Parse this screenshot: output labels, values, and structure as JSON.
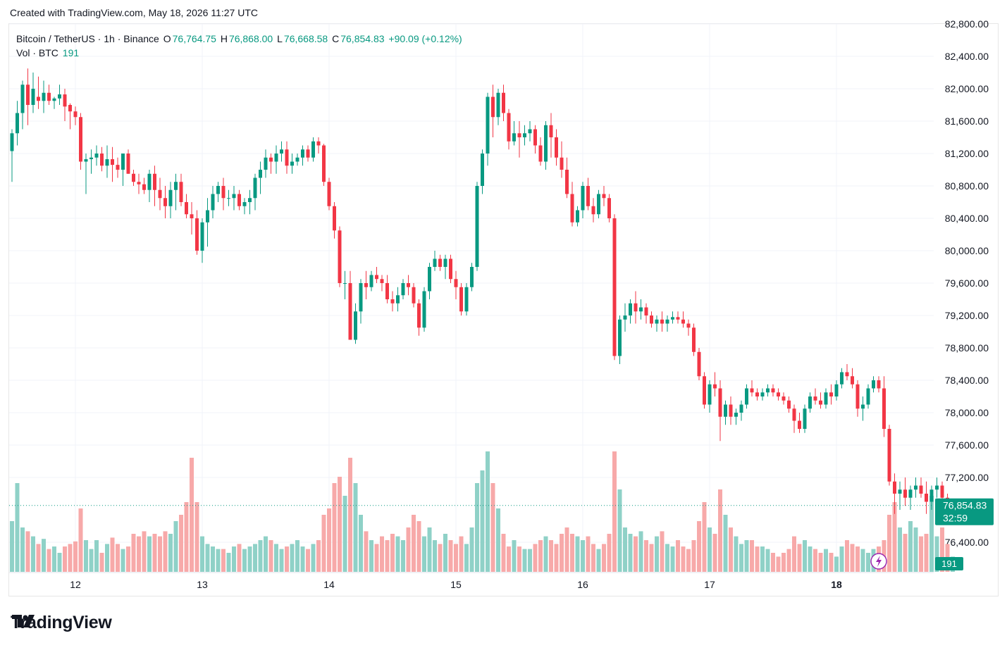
{
  "header": {
    "created_text": "Created with TradingView.com, May 18, 2026 11:27 UTC"
  },
  "legend": {
    "symbol": "Bitcoin / TetherUS · 1h · Binance",
    "open_label": "O",
    "open": "76,764.75",
    "high_label": "H",
    "high": "76,868.00",
    "low_label": "L",
    "low": "76,668.58",
    "close_label": "C",
    "close": "76,854.83",
    "change": "+90.09 (+0.12%)",
    "volume_label": "Vol · BTC",
    "volume": "191"
  },
  "price_tag": {
    "price": "76,854.83",
    "countdown": "32:59"
  },
  "volume_tag": "191",
  "brand": {
    "name": "TradingView"
  },
  "colors": {
    "up": "#089981",
    "down": "#f23645",
    "up_volume": "#8fd1c7",
    "down_volume": "#f7a9a9",
    "price_tag": "#089981",
    "grid": "#f0f3fa",
    "axis_text": "#131722"
  },
  "chart_data": {
    "type": "candlestick",
    "title": "Bitcoin / TetherUS · 1h · Binance",
    "ylim": [
      76100,
      82900
    ],
    "y_ticks": [
      "82,800.00",
      "82,400.00",
      "82,000.00",
      "81,600.00",
      "81,200.00",
      "80,800.00",
      "80,400.00",
      "80,000.00",
      "79,600.00",
      "79,200.00",
      "78,800.00",
      "78,400.00",
      "78,000.00",
      "77,600.00",
      "77,200.00",
      "76,400.00"
    ],
    "y_tick_values": [
      82800,
      82400,
      82000,
      81600,
      81200,
      80800,
      80400,
      80000,
      79600,
      79200,
      78800,
      78400,
      78000,
      77600,
      77200,
      76400
    ],
    "x_labels": [
      "12",
      "13",
      "14",
      "15",
      "16",
      "17",
      "18"
    ],
    "x_label_hours": [
      12,
      36,
      60,
      84,
      108,
      132,
      156
    ],
    "last_price": 76854.83,
    "grid": true,
    "candles": [
      [
        0,
        81230,
        81500,
        80850,
        81450,
        40
      ],
      [
        1,
        81450,
        81850,
        81300,
        81700,
        70
      ],
      [
        2,
        81700,
        82100,
        81500,
        82050,
        35
      ],
      [
        3,
        82050,
        82250,
        81550,
        81800,
        32
      ],
      [
        4,
        81800,
        82200,
        81700,
        82000,
        28
      ],
      [
        5,
        81900,
        82150,
        81750,
        81850,
        22
      ],
      [
        6,
        81850,
        82100,
        81700,
        81950,
        26
      ],
      [
        7,
        81950,
        82050,
        81800,
        81850,
        18
      ],
      [
        8,
        81850,
        81900,
        81750,
        81880,
        20
      ],
      [
        9,
        81880,
        82050,
        81800,
        81930,
        15
      ],
      [
        10,
        81930,
        82000,
        81600,
        81780,
        20
      ],
      [
        11,
        81800,
        81820,
        81500,
        81720,
        22
      ],
      [
        12,
        81720,
        81780,
        81550,
        81650,
        24
      ],
      [
        13,
        81650,
        81700,
        81000,
        81100,
        50
      ],
      [
        14,
        81100,
        81200,
        80700,
        81130,
        25
      ],
      [
        15,
        81130,
        81250,
        80950,
        81150,
        18
      ],
      [
        16,
        81150,
        81300,
        81050,
        81200,
        25
      ],
      [
        17,
        81200,
        81280,
        80980,
        81050,
        15
      ],
      [
        18,
        81050,
        81300,
        80900,
        81130,
        22
      ],
      [
        19,
        81130,
        81280,
        80850,
        81060,
        27
      ],
      [
        20,
        81060,
        81150,
        80900,
        81000,
        22
      ],
      [
        21,
        81000,
        81200,
        80800,
        81200,
        18
      ],
      [
        22,
        81200,
        81250,
        80950,
        80950,
        20
      ],
      [
        23,
        80950,
        81000,
        80800,
        80850,
        30
      ],
      [
        24,
        80850,
        80950,
        80700,
        80820,
        28
      ],
      [
        25,
        80820,
        80900,
        80700,
        80750,
        32
      ],
      [
        26,
        80750,
        81000,
        80600,
        80950,
        28
      ],
      [
        27,
        80950,
        81050,
        80550,
        80750,
        30
      ],
      [
        28,
        80750,
        80900,
        80500,
        80650,
        28
      ],
      [
        29,
        80650,
        80800,
        80400,
        80550,
        32
      ],
      [
        30,
        80550,
        80850,
        80400,
        80750,
        30
      ],
      [
        31,
        80750,
        80950,
        80500,
        80850,
        40
      ],
      [
        32,
        80850,
        80950,
        80550,
        80600,
        45
      ],
      [
        33,
        80600,
        80700,
        80400,
        80450,
        55
      ],
      [
        34,
        80450,
        80600,
        80200,
        80400,
        90
      ],
      [
        35,
        80400,
        80500,
        79950,
        80000,
        55
      ],
      [
        36,
        80000,
        80400,
        79850,
        80350,
        28
      ],
      [
        37,
        80350,
        80650,
        80050,
        80500,
        22
      ],
      [
        38,
        80500,
        80800,
        80400,
        80700,
        20
      ],
      [
        39,
        80700,
        80850,
        80600,
        80800,
        18
      ],
      [
        40,
        80800,
        80900,
        80500,
        80650,
        18
      ],
      [
        41,
        80650,
        80750,
        80550,
        80650,
        15
      ],
      [
        42,
        80650,
        80800,
        80500,
        80700,
        20
      ],
      [
        43,
        80700,
        80750,
        80500,
        80550,
        22
      ],
      [
        44,
        80550,
        80650,
        80450,
        80600,
        18
      ],
      [
        45,
        80600,
        80750,
        80450,
        80650,
        20
      ],
      [
        46,
        80650,
        80950,
        80500,
        80900,
        22
      ],
      [
        47,
        80900,
        81100,
        80700,
        81000,
        25
      ],
      [
        48,
        81000,
        81250,
        80900,
        81150,
        28
      ],
      [
        49,
        81150,
        81200,
        80950,
        81100,
        25
      ],
      [
        50,
        81100,
        81300,
        80950,
        81200,
        22
      ],
      [
        51,
        81200,
        81350,
        81100,
        81250,
        18
      ],
      [
        52,
        81250,
        81350,
        80950,
        81050,
        20
      ],
      [
        53,
        81050,
        81200,
        80950,
        81100,
        22
      ],
      [
        54,
        81100,
        81200,
        81050,
        81150,
        25
      ],
      [
        55,
        81150,
        81300,
        81050,
        81250,
        20
      ],
      [
        56,
        81250,
        81300,
        81100,
        81150,
        18
      ],
      [
        57,
        81150,
        81400,
        81100,
        81350,
        22
      ],
      [
        58,
        81350,
        81400,
        81200,
        81300,
        25
      ],
      [
        59,
        81300,
        81320,
        80800,
        80850,
        45
      ],
      [
        60,
        80850,
        80900,
        80500,
        80550,
        50
      ],
      [
        61,
        80550,
        80600,
        80150,
        80250,
        70
      ],
      [
        62,
        80250,
        80300,
        79550,
        79600,
        75
      ],
      [
        63,
        79600,
        79750,
        79400,
        79600,
        60
      ],
      [
        64,
        79600,
        79750,
        78950,
        78900,
        90
      ],
      [
        65,
        78900,
        79350,
        78850,
        79250,
        70
      ],
      [
        66,
        79250,
        79650,
        79100,
        79600,
        45
      ],
      [
        67,
        79600,
        79750,
        79400,
        79550,
        32
      ],
      [
        68,
        79550,
        79750,
        79500,
        79700,
        25
      ],
      [
        69,
        79700,
        79800,
        79600,
        79650,
        22
      ],
      [
        70,
        79650,
        79700,
        79500,
        79600,
        28
      ],
      [
        71,
        79600,
        79700,
        79350,
        79400,
        25
      ],
      [
        72,
        79400,
        79500,
        79250,
        79350,
        30
      ],
      [
        73,
        79350,
        79550,
        79250,
        79450,
        28
      ],
      [
        74,
        79450,
        79650,
        79400,
        79600,
        25
      ],
      [
        75,
        79600,
        79700,
        79450,
        79550,
        35
      ],
      [
        76,
        79550,
        79600,
        79300,
        79350,
        45
      ],
      [
        77,
        79350,
        79400,
        78950,
        79050,
        40
      ],
      [
        78,
        79050,
        79550,
        79000,
        79500,
        28
      ],
      [
        79,
        79500,
        79850,
        79400,
        79800,
        35
      ],
      [
        80,
        79800,
        80000,
        79750,
        79900,
        25
      ],
      [
        81,
        79900,
        79950,
        79750,
        79800,
        22
      ],
      [
        82,
        79800,
        79950,
        79650,
        79900,
        30
      ],
      [
        83,
        79900,
        79950,
        79600,
        79650,
        25
      ],
      [
        84,
        79650,
        79750,
        79400,
        79550,
        22
      ],
      [
        85,
        79550,
        79600,
        79200,
        79250,
        28
      ],
      [
        86,
        79250,
        79600,
        79200,
        79550,
        22
      ],
      [
        87,
        79550,
        79850,
        79500,
        79800,
        35
      ],
      [
        88,
        79800,
        80850,
        79750,
        80800,
        70
      ],
      [
        89,
        80800,
        81250,
        80700,
        81200,
        80
      ],
      [
        90,
        81200,
        81950,
        81050,
        81900,
        95
      ],
      [
        91,
        81900,
        82050,
        81400,
        81650,
        70
      ],
      [
        92,
        81650,
        82000,
        81550,
        81950,
        50
      ],
      [
        93,
        81950,
        82050,
        81600,
        81700,
        30
      ],
      [
        94,
        81700,
        81750,
        81250,
        81350,
        20
      ],
      [
        95,
        81350,
        81600,
        81300,
        81450,
        25
      ],
      [
        96,
        81450,
        81600,
        81150,
        81400,
        20
      ],
      [
        97,
        81400,
        81550,
        81300,
        81450,
        18
      ],
      [
        98,
        81450,
        81600,
        81350,
        81500,
        18
      ],
      [
        99,
        81500,
        81550,
        81200,
        81300,
        22
      ],
      [
        100,
        81300,
        81400,
        81050,
        81100,
        25
      ],
      [
        101,
        81100,
        81600,
        81000,
        81550,
        28
      ],
      [
        102,
        81550,
        81700,
        81150,
        81400,
        25
      ],
      [
        103,
        81400,
        81500,
        81050,
        81150,
        22
      ],
      [
        104,
        81150,
        81350,
        80900,
        81000,
        30
      ],
      [
        105,
        81000,
        81150,
        80650,
        80700,
        35
      ],
      [
        106,
        80700,
        80850,
        80300,
        80350,
        30
      ],
      [
        107,
        80350,
        80550,
        80300,
        80500,
        28
      ],
      [
        108,
        80500,
        80850,
        80400,
        80800,
        25
      ],
      [
        109,
        80800,
        80900,
        80500,
        80550,
        28
      ],
      [
        110,
        80550,
        80650,
        80350,
        80450,
        22
      ],
      [
        111,
        80450,
        80750,
        80400,
        80700,
        18
      ],
      [
        112,
        80700,
        80800,
        80550,
        80650,
        22
      ],
      [
        113,
        80650,
        80700,
        80350,
        80400,
        30
      ],
      [
        114,
        80400,
        80450,
        78650,
        78700,
        95
      ],
      [
        115,
        78700,
        79200,
        78600,
        79150,
        65
      ],
      [
        116,
        79150,
        79350,
        79000,
        79200,
        35
      ],
      [
        117,
        79200,
        79400,
        79100,
        79350,
        30
      ],
      [
        118,
        79350,
        79500,
        79100,
        79250,
        28
      ],
      [
        119,
        79250,
        79400,
        79150,
        79300,
        32
      ],
      [
        120,
        79300,
        79350,
        79100,
        79200,
        25
      ],
      [
        121,
        79200,
        79250,
        79050,
        79100,
        22
      ],
      [
        122,
        79100,
        79200,
        79000,
        79150,
        28
      ],
      [
        123,
        79150,
        79250,
        79000,
        79100,
        32
      ],
      [
        124,
        79100,
        79200,
        79000,
        79150,
        22
      ],
      [
        125,
        79150,
        79250,
        79100,
        79180,
        20
      ],
      [
        126,
        79180,
        79250,
        79100,
        79150,
        25
      ],
      [
        127,
        79150,
        79250,
        79050,
        79100,
        20
      ],
      [
        128,
        79100,
        79150,
        78950,
        79050,
        18
      ],
      [
        129,
        79050,
        79100,
        78700,
        78750,
        25
      ],
      [
        130,
        78750,
        78800,
        78400,
        78450,
        40
      ],
      [
        131,
        78450,
        78500,
        78050,
        78100,
        55
      ],
      [
        132,
        78100,
        78400,
        78000,
        78350,
        35
      ],
      [
        133,
        78350,
        78500,
        78200,
        78300,
        30
      ],
      [
        134,
        78300,
        78400,
        77650,
        77950,
        65
      ],
      [
        135,
        77950,
        78150,
        77850,
        78100,
        45
      ],
      [
        136,
        78100,
        78200,
        77850,
        77950,
        35
      ],
      [
        137,
        77950,
        78050,
        77850,
        78000,
        28
      ],
      [
        138,
        78000,
        78150,
        77900,
        78100,
        22
      ],
      [
        139,
        78100,
        78350,
        78050,
        78300,
        25
      ],
      [
        140,
        78300,
        78400,
        78200,
        78250,
        25
      ],
      [
        141,
        78250,
        78300,
        78150,
        78200,
        20
      ],
      [
        142,
        78200,
        78300,
        78150,
        78250,
        20
      ],
      [
        143,
        78250,
        78350,
        78200,
        78300,
        18
      ],
      [
        144,
        78300,
        78350,
        78200,
        78250,
        15
      ],
      [
        145,
        78250,
        78300,
        78150,
        78200,
        12
      ],
      [
        146,
        78200,
        78250,
        78100,
        78150,
        15
      ],
      [
        147,
        78150,
        78200,
        78000,
        78050,
        18
      ],
      [
        148,
        78050,
        78100,
        77750,
        77900,
        28
      ],
      [
        149,
        77900,
        78000,
        77750,
        77800,
        22
      ],
      [
        150,
        77800,
        78100,
        77750,
        78050,
        25
      ],
      [
        151,
        78050,
        78250,
        78000,
        78200,
        20
      ],
      [
        152,
        78200,
        78300,
        78100,
        78150,
        18
      ],
      [
        153,
        78150,
        78250,
        78050,
        78100,
        15
      ],
      [
        154,
        78100,
        78300,
        78050,
        78250,
        18
      ],
      [
        155,
        78250,
        78350,
        78100,
        78200,
        15
      ],
      [
        156,
        78200,
        78400,
        78150,
        78350,
        12
      ],
      [
        157,
        78350,
        78550,
        78300,
        78500,
        20
      ],
      [
        158,
        78500,
        78600,
        78400,
        78450,
        25
      ],
      [
        159,
        78450,
        78550,
        78300,
        78350,
        22
      ],
      [
        160,
        78350,
        78400,
        77950,
        78050,
        20
      ],
      [
        161,
        78050,
        78200,
        77900,
        78100,
        18
      ],
      [
        162,
        78100,
        78350,
        78050,
        78300,
        15
      ],
      [
        163,
        78300,
        78450,
        78250,
        78400,
        18
      ],
      [
        164,
        78400,
        78450,
        78250,
        78300,
        20
      ],
      [
        165,
        78300,
        78450,
        77700,
        77800,
        25
      ],
      [
        166,
        77800,
        77850,
        77100,
        77150,
        45
      ],
      [
        167,
        77150,
        77250,
        76750,
        77000,
        55
      ],
      [
        168,
        77000,
        77150,
        76800,
        77050,
        35
      ],
      [
        169,
        77050,
        77200,
        76850,
        76950,
        30
      ],
      [
        170,
        76950,
        77100,
        76800,
        77050,
        40
      ],
      [
        171,
        77050,
        77200,
        76950,
        77100,
        35
      ],
      [
        172,
        77100,
        77200,
        76950,
        77000,
        28
      ],
      [
        173,
        77000,
        77150,
        76750,
        76900,
        30
      ],
      [
        174,
        76900,
        77100,
        76800,
        77050,
        60
      ],
      [
        175,
        77050,
        77200,
        76950,
        77100,
        28
      ],
      [
        176,
        77100,
        77150,
        76900,
        76950,
        35
      ],
      [
        177,
        76950,
        77000,
        76700,
        76760,
        22
      ],
      [
        178,
        76760,
        76870,
        76670,
        76855,
        12
      ]
    ]
  }
}
